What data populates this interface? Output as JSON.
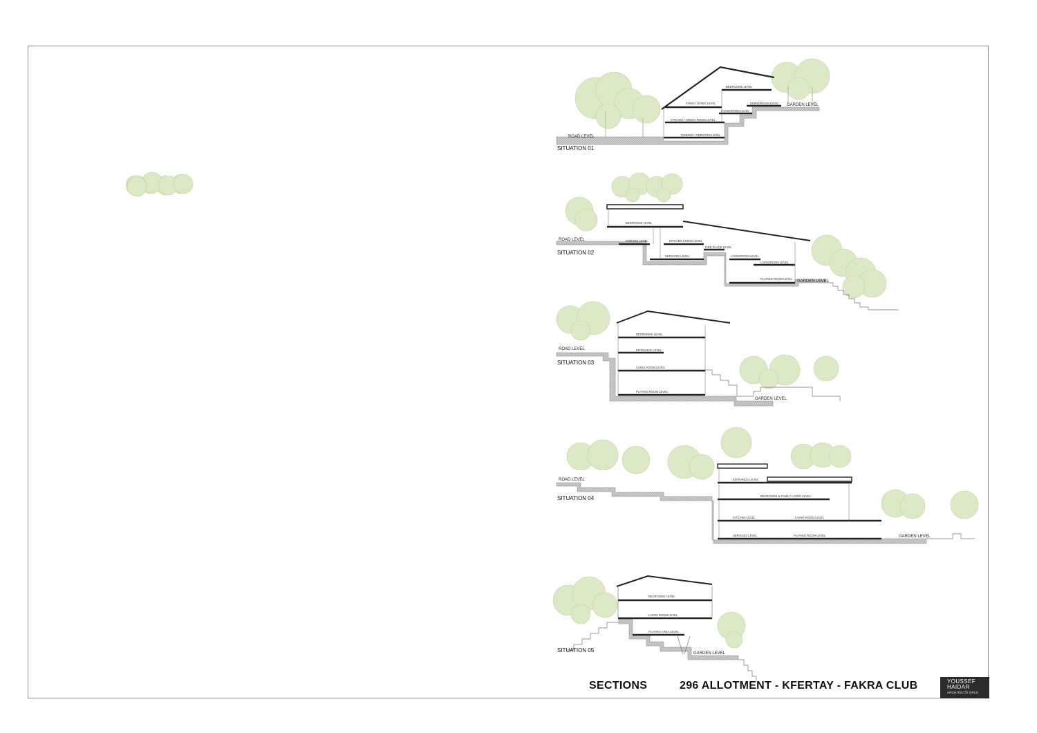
{
  "sheet": {
    "title_left": "SECTIONS",
    "title_right": "296 ALLOTMENT - KFERTAY - FAKRA CLUB",
    "logo": {
      "line1": "YOUSSEF",
      "line2": "HAIDAR",
      "line3": "ARCHITECTE DPLG"
    }
  },
  "colors": {
    "tree_fill": "#dce8c6",
    "tree_stroke": "#b9cf97",
    "ground_hatch": "#b8b8b8",
    "slab": "#2a2a2a",
    "logo_bg": "#2b2b2b"
  },
  "situations": [
    {
      "label": "SITUATION 01",
      "road_label": "ROAD LEVEL",
      "levels": [
        "BEDROOMS LEVEL",
        "FAMILY LIVING LEVEL",
        "DININGROOM LEVEL",
        "LIVINGROOM LEVEL",
        "KITCHEN / DINING ROOM LEVEL",
        "PARKING / SERVICES LEVEL",
        "GARDEN LEVEL"
      ]
    },
    {
      "label": "SITUATION 02",
      "road_label": "ROAD LEVEL",
      "levels": [
        "BEDROOMS LEVEL",
        "PARKING LEVEL",
        "KITCHEN DINING LEVEL",
        "FIRE PLACE LEVEL",
        "SERVICES LEVEL",
        "LIVINGROOM LEVEL",
        "LIVINGROOM LEVEL",
        "PLAYING ROOM LEVEL",
        "GARDEN LEVEL"
      ]
    },
    {
      "label": "SITUATION 03",
      "road_label": "ROAD LEVEL",
      "levels": [
        "BEDROOMS LEVEL",
        "ENTRANCE LEVEL",
        "LIVING ROOM LEVEL",
        "PLAYING ROOM LEVEL",
        "GARDEN LEVEL"
      ]
    },
    {
      "label": "SITUATION 04",
      "road_label": "ROAD LEVEL",
      "levels": [
        "ENTRANCE LEVEL",
        "BEDROOMS & FAMILY LIVING LEVEL",
        "KITCHEN LEVEL",
        "LIVING ROOM LEVEL",
        "SERVICES LEVEL",
        "PLAYING ROOM LEVEL",
        "GARDEN LEVEL"
      ]
    },
    {
      "label": "SITUATION 05",
      "levels": [
        "BEDROOMS LEVEL",
        "LIVING ROOM LEVEL",
        "PLAYING AREA LEVEL",
        "GARDEN LEVEL"
      ]
    }
  ]
}
